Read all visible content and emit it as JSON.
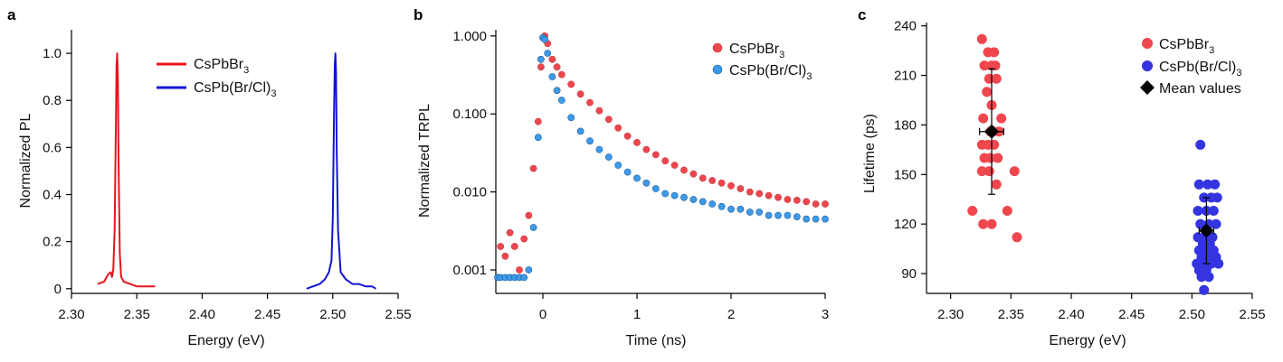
{
  "chart_data": [
    {
      "panel": "a",
      "type": "line",
      "xlabel": "Energy (eV)",
      "ylabel": "Normalized PL",
      "xlim": [
        2.3,
        2.55
      ],
      "ylim": [
        -0.02,
        1.1
      ],
      "xticks": [
        "2.30",
        "2.35",
        "2.40",
        "2.45",
        "2.50",
        "2.55"
      ],
      "yticks": [
        "0",
        "0.2",
        "0.4",
        "0.6",
        "0.8",
        "1.0"
      ],
      "legend": {
        "placement": "top-center"
      },
      "series": [
        {
          "name": "CsPbBr3",
          "name_main": "CsPbBr",
          "name_sub": "3",
          "color": "#e8141c",
          "x": [
            2.32,
            2.325,
            2.328,
            2.33,
            2.331,
            2.332,
            2.333,
            2.334,
            2.3345,
            2.335,
            2.3355,
            2.336,
            2.337,
            2.338,
            2.34,
            2.345,
            2.35,
            2.355,
            2.36,
            2.364
          ],
          "y": [
            0.02,
            0.03,
            0.06,
            0.07,
            0.05,
            0.08,
            0.25,
            0.7,
            0.95,
            1.0,
            0.9,
            0.55,
            0.15,
            0.05,
            0.03,
            0.02,
            0.01,
            0.01,
            0.01,
            0.01
          ]
        },
        {
          "name": "CsPb(Br/Cl)3",
          "name_main": "CsPb(Br/Cl)",
          "name_sub": "3",
          "color": "#1414d2",
          "x": [
            2.48,
            2.485,
            2.49,
            2.494,
            2.497,
            2.499,
            2.5,
            2.501,
            2.5015,
            2.502,
            2.5025,
            2.503,
            2.504,
            2.506,
            2.51,
            2.515,
            2.52,
            2.525,
            2.53,
            2.533
          ],
          "y": [
            0.0,
            0.01,
            0.02,
            0.04,
            0.07,
            0.12,
            0.3,
            0.75,
            0.95,
            1.0,
            0.92,
            0.6,
            0.25,
            0.07,
            0.04,
            0.02,
            0.02,
            0.01,
            0.01,
            0.0
          ]
        }
      ]
    },
    {
      "panel": "b",
      "type": "scatter",
      "xlabel": "Time (ns)",
      "ylabel": "Normalized TRPL",
      "xlim": [
        -0.5,
        3.0
      ],
      "ylim": [
        0.0005,
        1.2
      ],
      "yscale": "log",
      "xticks": [
        "0",
        "1",
        "2",
        "3"
      ],
      "yticks": [
        "0.001",
        "0.010",
        "0.100",
        "1.000"
      ],
      "legend": {
        "placement": "top-right"
      },
      "series": [
        {
          "name": "CsPbBr3",
          "name_main": "CsPbBr",
          "name_sub": "3",
          "color": "#f0464e",
          "x": [
            -0.45,
            -0.4,
            -0.35,
            -0.3,
            -0.25,
            -0.2,
            -0.15,
            -0.1,
            -0.05,
            -0.02,
            0.0,
            0.02,
            0.05,
            0.1,
            0.15,
            0.2,
            0.3,
            0.4,
            0.5,
            0.6,
            0.7,
            0.8,
            0.9,
            1.0,
            1.1,
            1.2,
            1.3,
            1.4,
            1.5,
            1.6,
            1.7,
            1.8,
            1.9,
            2.0,
            2.1,
            2.2,
            2.3,
            2.4,
            2.5,
            2.6,
            2.7,
            2.8,
            2.9,
            3.0
          ],
          "y": [
            0.002,
            0.0015,
            0.003,
            0.002,
            0.001,
            0.0025,
            0.005,
            0.02,
            0.08,
            0.4,
            0.95,
            1.0,
            0.8,
            0.5,
            0.4,
            0.32,
            0.24,
            0.18,
            0.14,
            0.11,
            0.085,
            0.066,
            0.052,
            0.043,
            0.035,
            0.03,
            0.025,
            0.022,
            0.019,
            0.017,
            0.015,
            0.014,
            0.013,
            0.012,
            0.011,
            0.01,
            0.0095,
            0.009,
            0.0085,
            0.008,
            0.0078,
            0.0075,
            0.007,
            0.007
          ]
        },
        {
          "name": "CsPb(Br/Cl)3",
          "name_main": "CsPb(Br/Cl)",
          "name_sub": "3",
          "color": "#3d9ae8",
          "x": [
            -0.48,
            -0.45,
            -0.4,
            -0.35,
            -0.3,
            -0.25,
            -0.2,
            -0.15,
            -0.1,
            -0.05,
            -0.02,
            0.0,
            0.02,
            0.05,
            0.1,
            0.15,
            0.2,
            0.3,
            0.4,
            0.5,
            0.6,
            0.7,
            0.8,
            0.9,
            1.0,
            1.1,
            1.2,
            1.3,
            1.4,
            1.5,
            1.6,
            1.7,
            1.8,
            1.9,
            2.0,
            2.1,
            2.2,
            2.3,
            2.4,
            2.5,
            2.6,
            2.7,
            2.8,
            2.9,
            3.0
          ],
          "y": [
            0.0008,
            0.0008,
            0.0008,
            0.0008,
            0.0008,
            0.0008,
            0.0008,
            0.001,
            0.0035,
            0.05,
            0.5,
            0.95,
            0.9,
            0.6,
            0.3,
            0.2,
            0.15,
            0.09,
            0.06,
            0.045,
            0.035,
            0.028,
            0.022,
            0.018,
            0.015,
            0.013,
            0.011,
            0.0095,
            0.009,
            0.0085,
            0.008,
            0.0075,
            0.007,
            0.0065,
            0.006,
            0.006,
            0.0055,
            0.0055,
            0.005,
            0.005,
            0.005,
            0.0048,
            0.0045,
            0.0045,
            0.0045
          ]
        }
      ]
    },
    {
      "panel": "c",
      "type": "scatter",
      "xlabel": "Energy (eV)",
      "ylabel": "Lifetime (ps)",
      "xlim": [
        2.28,
        2.55
      ],
      "ylim": [
        78,
        242
      ],
      "xticks": [
        "2.30",
        "2.35",
        "2.40",
        "2.45",
        "2.50",
        "2.55"
      ],
      "yticks": [
        "90",
        "120",
        "150",
        "180",
        "210",
        "240"
      ],
      "legend": {
        "placement": "top-right"
      },
      "series": [
        {
          "name": "CsPbBr3",
          "name_main": "CsPbBr",
          "name_sub": "3",
          "color": "#f0464e",
          "x": [
            2.326,
            2.331,
            2.336,
            2.328,
            2.334,
            2.337,
            2.332,
            2.338,
            2.33,
            2.334,
            2.342,
            2.327,
            2.333,
            2.335,
            2.34,
            2.326,
            2.331,
            2.336,
            2.328,
            2.333,
            2.339,
            2.326,
            2.332,
            2.353,
            2.338,
            2.318,
            2.347,
            2.327,
            2.334,
            2.355
          ],
          "y": [
            232,
            224,
            224,
            216,
            216,
            216,
            208,
            208,
            200,
            192,
            184,
            184,
            176,
            176,
            176,
            168,
            168,
            168,
            160,
            160,
            160,
            152,
            152,
            152,
            144,
            128,
            128,
            120,
            120,
            112
          ]
        },
        {
          "name": "CsPb(Br/Cl)3",
          "name_main": "CsPb(Br/Cl)",
          "name_sub": "3",
          "color": "#3434e0",
          "x": [
            2.507,
            2.506,
            2.513,
            2.519,
            2.51,
            2.516,
            2.521,
            2.505,
            2.512,
            2.518,
            2.507,
            2.514,
            2.52,
            2.505,
            2.511,
            2.517,
            2.509,
            2.515,
            2.506,
            2.512,
            2.518,
            2.508,
            2.514,
            2.52,
            2.504,
            2.51,
            2.516,
            2.522,
            2.506,
            2.512,
            2.508,
            2.514,
            2.51
          ],
          "y": [
            168,
            144,
            144,
            144,
            136,
            136,
            136,
            128,
            128,
            128,
            120,
            120,
            120,
            112,
            112,
            112,
            108,
            108,
            104,
            104,
            104,
            100,
            100,
            100,
            96,
            96,
            96,
            96,
            92,
            92,
            88,
            88,
            80
          ]
        },
        {
          "name": "Mean values",
          "color": "#000000",
          "marker": "diamond",
          "x": [
            2.334,
            2.512
          ],
          "y": [
            176,
            116
          ],
          "yerr": [
            38,
            20
          ],
          "xerr": [
            0.01,
            0.006
          ]
        }
      ]
    }
  ]
}
